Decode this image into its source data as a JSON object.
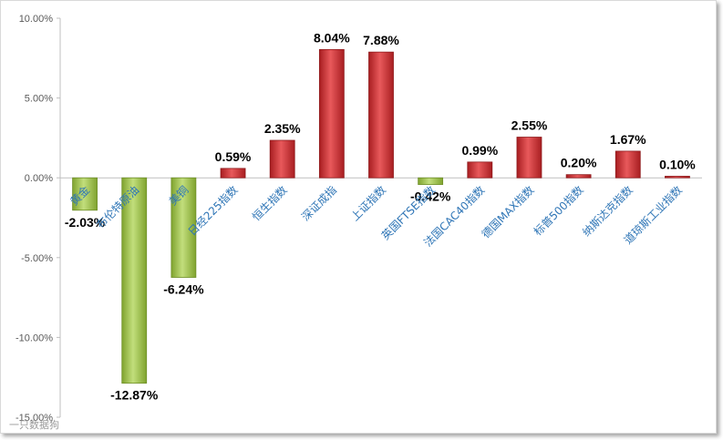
{
  "chart_data": {
    "type": "bar",
    "title": "",
    "xlabel": "",
    "ylabel": "",
    "ylim": [
      -15,
      10
    ],
    "y_ticks": [
      10,
      5,
      0,
      -5,
      -10,
      -15
    ],
    "y_tick_labels": [
      "10.00%",
      "5.00%",
      "0.00%",
      "-5.00%",
      "-10.00%",
      "-15.00%"
    ],
    "grid": false,
    "legend": "none",
    "categories": [
      "黄金",
      "布伦特原油",
      "美铜",
      "日经225指数",
      "恒生指数",
      "深证成指",
      "上证指数",
      "英国FTSE指数",
      "法国CAC40指数",
      "德国MAX指数",
      "标普500指数",
      "纳斯达克指数",
      "道琼斯工业指数"
    ],
    "values": [
      -2.03,
      -12.87,
      -6.24,
      0.59,
      2.35,
      8.04,
      7.88,
      -0.42,
      0.99,
      2.55,
      0.2,
      1.67,
      0.1
    ],
    "value_labels": [
      "-2.03%",
      "-12.87%",
      "-6.24%",
      "0.59%",
      "2.35%",
      "8.04%",
      "7.88%",
      "-0.42%",
      "0.99%",
      "2.55%",
      "0.20%",
      "1.67%",
      "0.10%"
    ],
    "colors": {
      "positive": "#c0282b",
      "positive_light": "#e8595b",
      "negative": "#8db33a",
      "negative_light": "#c2de7c"
    }
  },
  "watermark": "一只数据狗"
}
